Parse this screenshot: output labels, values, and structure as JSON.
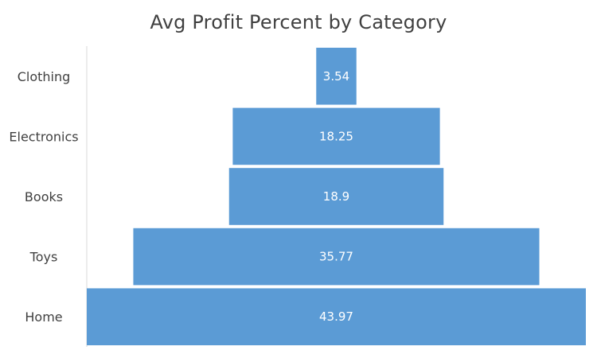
{
  "chart_data": {
    "type": "bar",
    "subtype": "funnel",
    "title": "Avg Profit Percent by Category",
    "xlabel": "",
    "ylabel": "",
    "categories": [
      "Clothing",
      "Electronics",
      "Books",
      "Toys",
      "Home"
    ],
    "values": [
      3.54,
      18.25,
      18.9,
      35.77,
      43.97
    ],
    "data_labels": [
      "3.54",
      "18.25",
      "18.9",
      "35.77",
      "43.97"
    ],
    "orientation": "horizontal",
    "alignment": "centered",
    "legend": "none",
    "grid": false,
    "colors": {
      "bar": "#5B9BD5",
      "axis": "#D9D9D9",
      "text": "#404040",
      "label": "#ffffff"
    }
  }
}
